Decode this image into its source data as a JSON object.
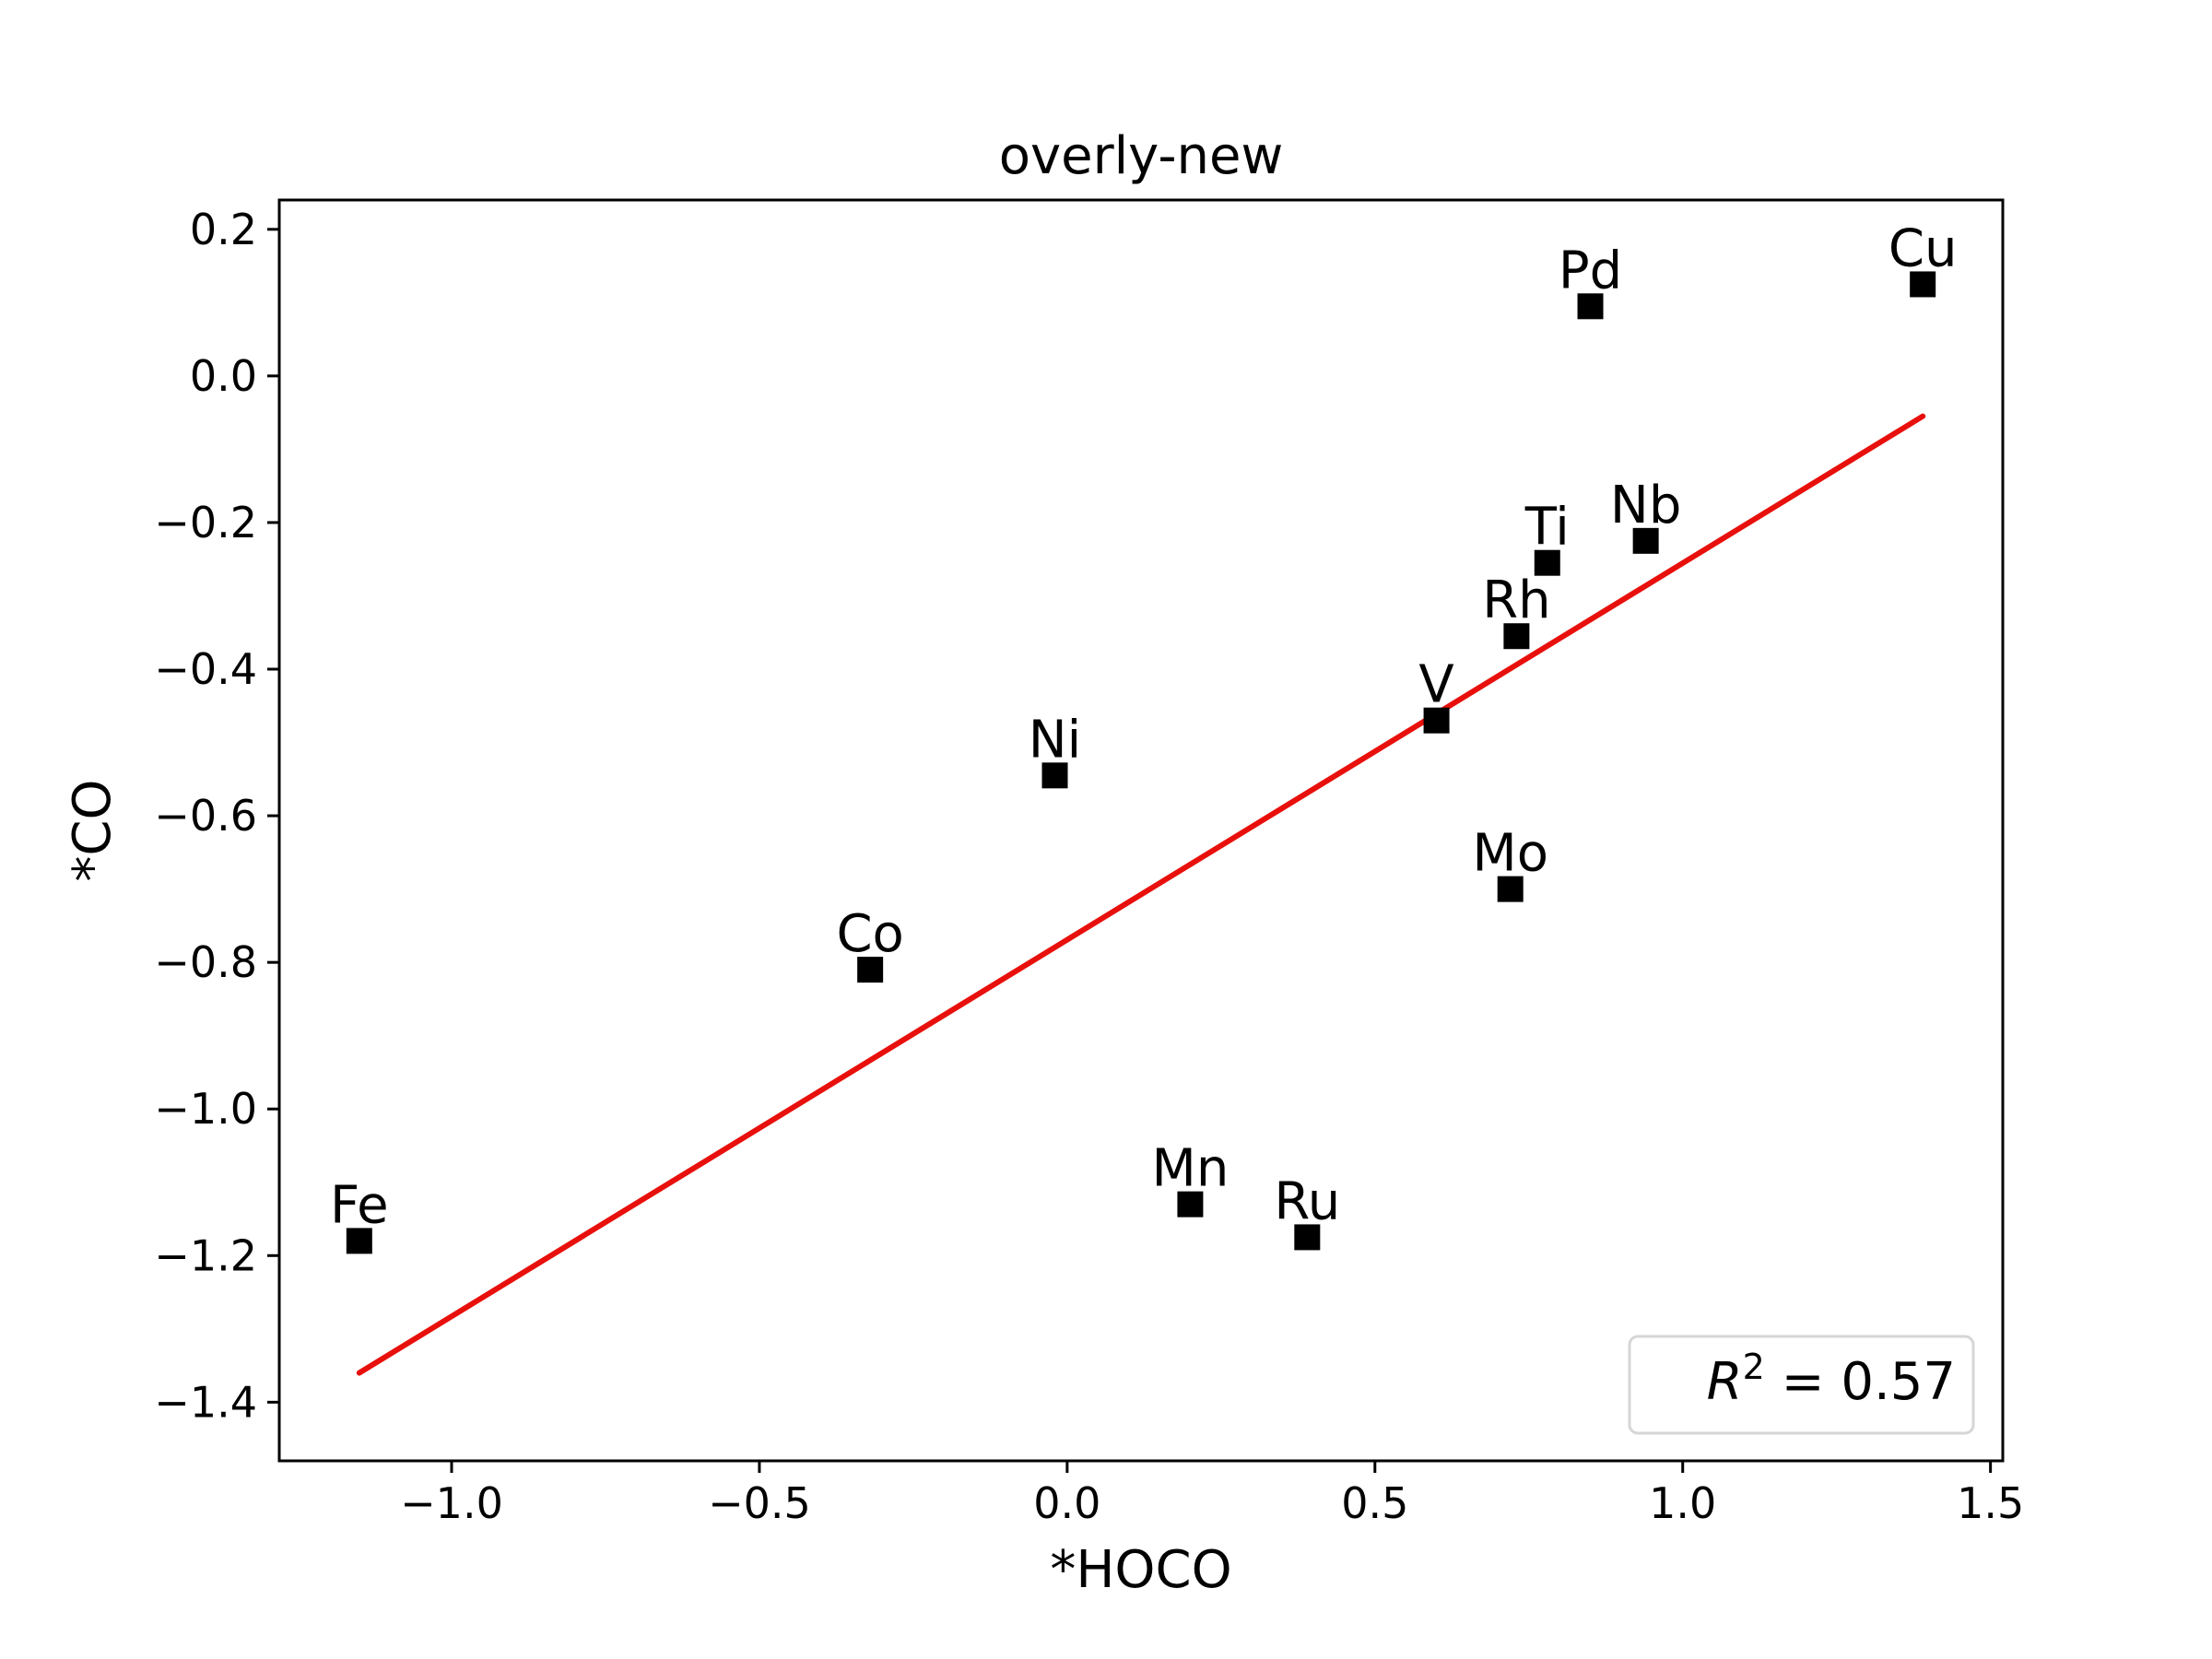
{
  "chart_data": {
    "type": "scatter",
    "title": "overly-new",
    "xlabel": "*HOCO",
    "ylabel": "*CO",
    "xlim": [
      -1.28,
      1.52
    ],
    "ylim": [
      -1.48,
      0.24
    ],
    "xticks": [
      -1.0,
      -0.5,
      0.0,
      0.5,
      1.0,
      1.5
    ],
    "xtick_labels": [
      "−1.0",
      "−0.5",
      "0.0",
      "0.5",
      "1.0",
      "1.5"
    ],
    "yticks": [
      0.2,
      0.0,
      -0.2,
      -0.4,
      -0.6,
      -0.8,
      -1.0,
      -1.2,
      -1.4
    ],
    "ytick_labels": [
      "0.2",
      "0.0",
      "−0.2",
      "−0.4",
      "−0.6",
      "−0.8",
      "−1.0",
      "−1.2",
      "−1.4"
    ],
    "grid": false,
    "points": [
      {
        "label": "Fe",
        "x": -1.15,
        "y": -1.18
      },
      {
        "label": "Co",
        "x": -0.32,
        "y": -0.81
      },
      {
        "label": "Ni",
        "x": -0.02,
        "y": -0.545
      },
      {
        "label": "Mn",
        "x": 0.2,
        "y": -1.13
      },
      {
        "label": "Ru",
        "x": 0.39,
        "y": -1.175
      },
      {
        "label": "V",
        "x": 0.6,
        "y": -0.47
      },
      {
        "label": "Mo",
        "x": 0.72,
        "y": -0.7
      },
      {
        "label": "Rh",
        "x": 0.73,
        "y": -0.355
      },
      {
        "label": "Ti",
        "x": 0.78,
        "y": -0.255
      },
      {
        "label": "Pd",
        "x": 0.85,
        "y": 0.095
      },
      {
        "label": "Nb",
        "x": 0.94,
        "y": -0.225
      },
      {
        "label": "Cu",
        "x": 1.39,
        "y": 0.125
      }
    ],
    "marker_color": "#000000",
    "fit_line": {
      "x": [
        -1.15,
        1.39
      ],
      "y": [
        -1.36,
        -0.055
      ],
      "color": "#e8100c"
    },
    "legend": {
      "placement": "lower-right",
      "r2_value": "0.57"
    }
  }
}
